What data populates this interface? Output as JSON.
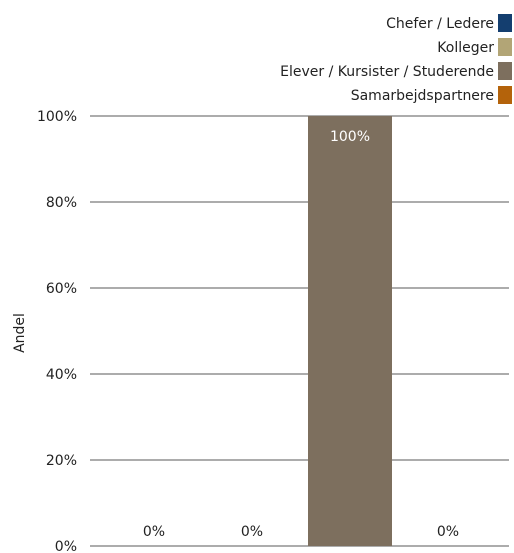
{
  "chart_data": {
    "type": "bar",
    "title": "",
    "xlabel": "",
    "ylabel": "Andel",
    "ylim": [
      0,
      100
    ],
    "yticks": [
      "0%",
      "20%",
      "40%",
      "60%",
      "80%",
      "100%"
    ],
    "grid": true,
    "legend_position": "top-right",
    "series": [
      {
        "name": "Chefer / Ledere",
        "color": "#143e6f",
        "value": 0,
        "label": "0%"
      },
      {
        "name": "Kolleger",
        "color": "#b2a576",
        "value": 0,
        "label": "0%"
      },
      {
        "name": "Elever / Kursister / Studerende",
        "color": "#7d6f5e",
        "value": 100,
        "label": "100%"
      },
      {
        "name": "Samarbejdspartnere",
        "color": "#b4630b",
        "value": 0,
        "label": "0%"
      }
    ]
  }
}
